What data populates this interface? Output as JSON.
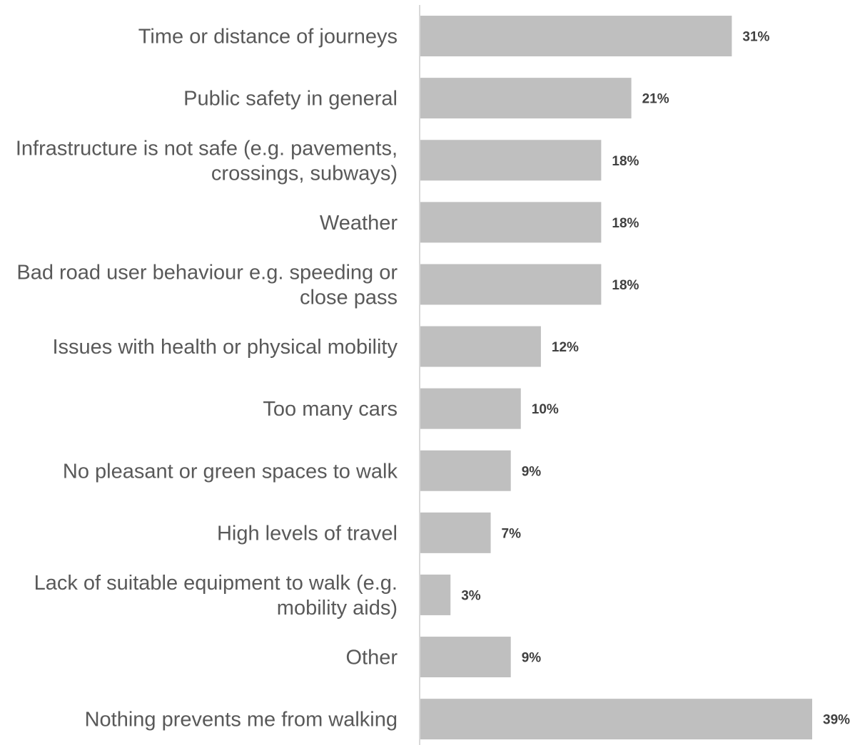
{
  "chart_data": {
    "type": "bar",
    "orientation": "horizontal",
    "categories": [
      [
        "Time or distance of journeys"
      ],
      [
        "Public safety in general"
      ],
      [
        "Infrastructure is not safe (e.g. pavements,",
        "crossings, subways)"
      ],
      [
        "Weather"
      ],
      [
        "Bad road user behaviour e.g. speeding or",
        "close pass"
      ],
      [
        "Issues with health or physical mobility"
      ],
      [
        "Too many cars"
      ],
      [
        "No pleasant or green spaces to walk"
      ],
      [
        "High levels of travel"
      ],
      [
        "Lack of suitable equipment to walk (e.g.",
        "mobility aids)"
      ],
      [
        "Other"
      ],
      [
        "Nothing prevents me from walking"
      ]
    ],
    "values": [
      31,
      21,
      18,
      18,
      18,
      12,
      10,
      9,
      7,
      3,
      9,
      39
    ],
    "value_labels": [
      "31%",
      "21%",
      "18%",
      "18%",
      "18%",
      "12%",
      "10%",
      "9%",
      "7%",
      "3%",
      "9%",
      "39%"
    ],
    "unit": "%",
    "xlim": [
      0,
      40
    ],
    "grid": false,
    "legend": "none",
    "colors": {
      "bar": "#bfbfbf",
      "axis": "#d9d9d9",
      "category_text": "#595959",
      "value_text": "#404040"
    }
  }
}
